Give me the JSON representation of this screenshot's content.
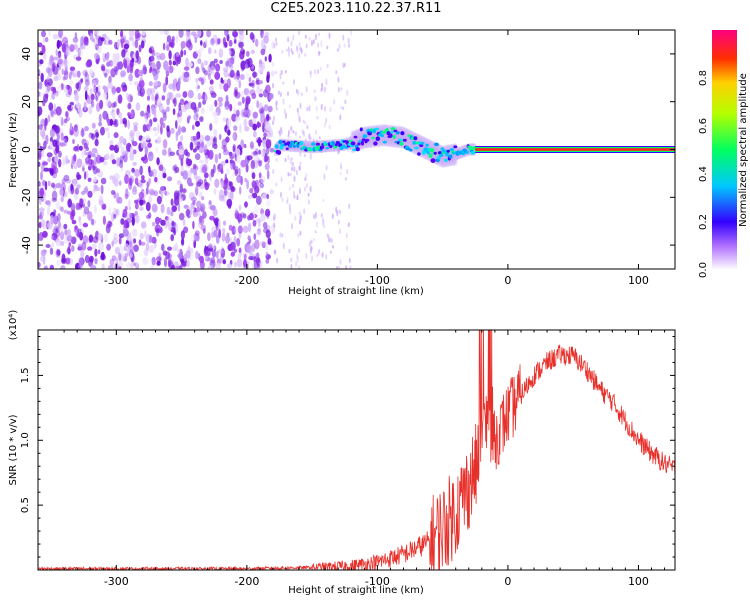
{
  "title": "C2E5.2023.110.22.37.R11",
  "colors": {
    "snr_line": "#e8302b",
    "axis": "#000000"
  },
  "chart_data": [
    {
      "type": "heatmap",
      "xlabel": "Height of straight line (km)",
      "ylabel": "Frequency (Hz)",
      "xlim": [
        -360,
        128
      ],
      "ylim": [
        -50,
        50
      ],
      "x_ticks": [
        {
          "value": -300,
          "label": "-300"
        },
        {
          "value": -200,
          "label": "-200"
        },
        {
          "value": -100,
          "label": "-100"
        },
        {
          "value": 0,
          "label": "0"
        },
        {
          "value": 100,
          "label": "100"
        }
      ],
      "y_ticks": [
        {
          "value": -40,
          "label": "-40"
        },
        {
          "value": -20,
          "label": "-20"
        },
        {
          "value": 0,
          "label": "0"
        },
        {
          "value": 20,
          "label": "20"
        },
        {
          "value": 40,
          "label": "40"
        }
      ],
      "colorbar": {
        "label": "Normalized spectral amplitude",
        "range": [
          0,
          1
        ],
        "ticks": [
          {
            "value": 0.0,
            "label": "0.0"
          },
          {
            "value": 0.2,
            "label": "0.2"
          },
          {
            "value": 0.4,
            "label": "0.4"
          },
          {
            "value": 0.6,
            "label": "0.6"
          },
          {
            "value": 0.8,
            "label": "0.8"
          }
        ]
      },
      "features": {
        "noise_region_x": [
          -360,
          -180
        ],
        "sparse_region_x": [
          -180,
          -120
        ],
        "echo_center_freq": [
          [
            -175,
            2
          ],
          [
            -150,
            1
          ],
          [
            -125,
            2
          ],
          [
            -110,
            5
          ],
          [
            -95,
            6
          ],
          [
            -80,
            5
          ],
          [
            -65,
            1
          ],
          [
            -50,
            -3
          ],
          [
            -40,
            -2
          ],
          [
            -30,
            0
          ],
          [
            -20,
            0
          ],
          [
            0,
            0
          ],
          [
            128,
            0
          ]
        ],
        "strong_band_x": [
          -25,
          128
        ]
      }
    },
    {
      "type": "line",
      "xlabel": "Height of straight line (km)",
      "ylabel": "SNR (10 * v/v)",
      "y_multiplier": "(x10⁴)",
      "xlim": [
        -360,
        128
      ],
      "ylim": [
        0,
        1.85
      ],
      "x_ticks": [
        {
          "value": -300,
          "label": "-300"
        },
        {
          "value": -200,
          "label": "-200"
        },
        {
          "value": -100,
          "label": "-100"
        },
        {
          "value": 0,
          "label": "0"
        },
        {
          "value": 100,
          "label": "100"
        }
      ],
      "y_ticks": [
        {
          "value": 0.5,
          "label": "0.5"
        },
        {
          "value": 1.0,
          "label": "1.0"
        },
        {
          "value": 1.5,
          "label": "1.5"
        }
      ],
      "series": [
        {
          "x": [
            -360,
            -300,
            -200,
            -150,
            -120,
            -100,
            -80,
            -60,
            -50,
            -40,
            -30,
            -20,
            -15,
            -10,
            -5,
            0,
            10,
            20,
            30,
            40,
            50,
            60,
            70,
            80,
            90,
            100,
            110,
            120,
            128
          ],
          "y": [
            0.01,
            0.01,
            0.01,
            0.02,
            0.03,
            0.06,
            0.12,
            0.22,
            0.32,
            0.45,
            0.65,
            0.9,
            1.2,
            1.0,
            1.1,
            1.2,
            1.35,
            1.5,
            1.6,
            1.66,
            1.65,
            1.55,
            1.4,
            1.3,
            1.15,
            1.0,
            0.9,
            0.82,
            0.78
          ]
        }
      ]
    }
  ]
}
